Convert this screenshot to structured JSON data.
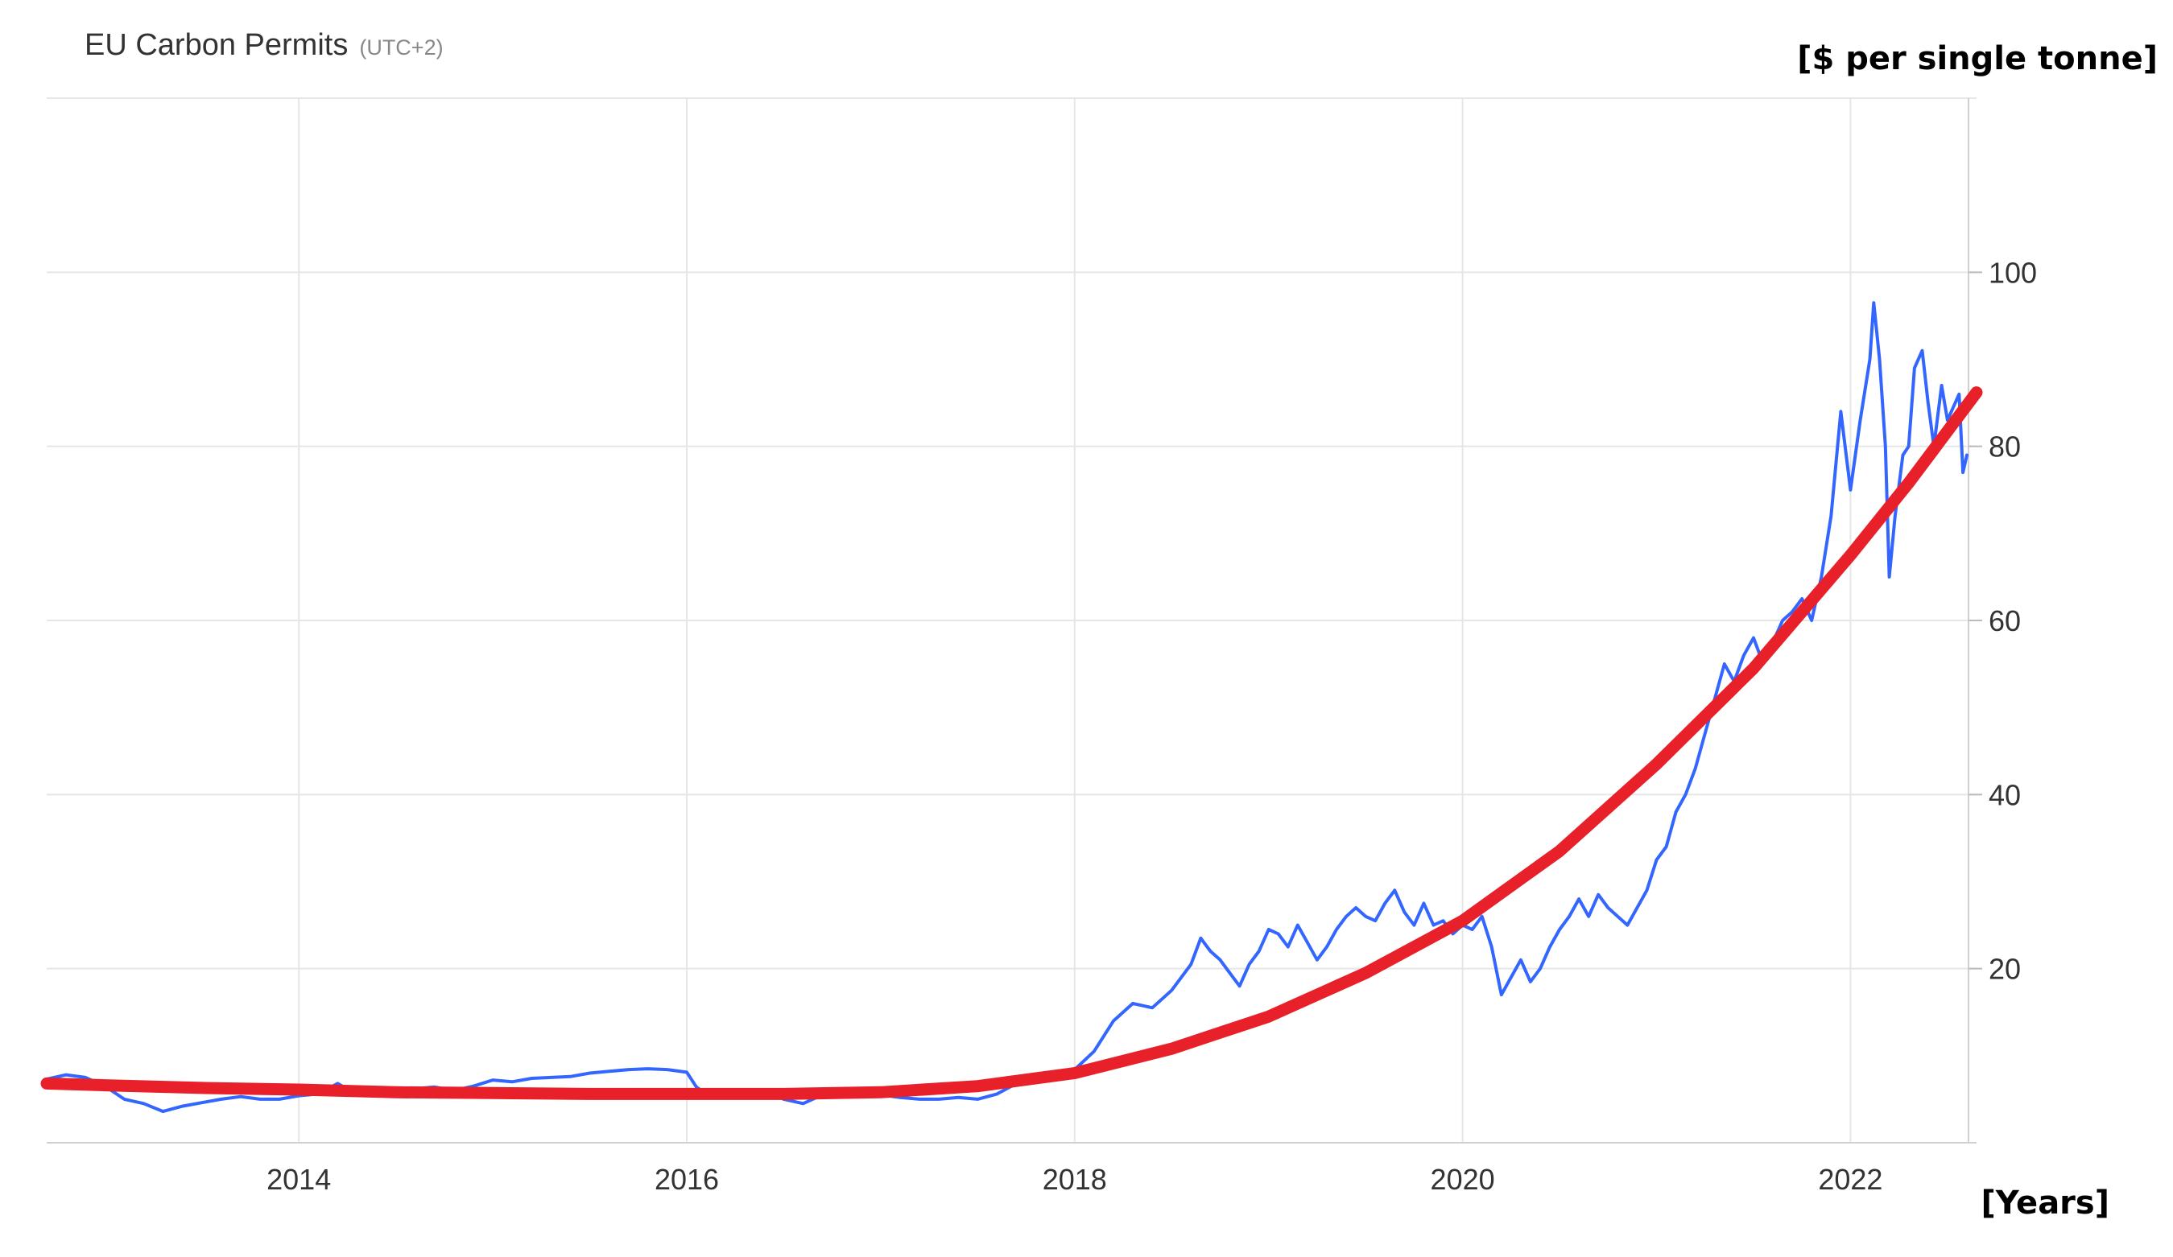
{
  "chart_data": {
    "type": "line",
    "title": "EU Carbon Permits",
    "subtitle": "(UTC+2)",
    "ylabel": "[$ per single tonne]",
    "xlabel": "[Years]",
    "xlim": [
      2012.7,
      2022.65
    ],
    "ylim": [
      0,
      120
    ],
    "x_ticks": [
      2014,
      2016,
      2018,
      2020,
      2022
    ],
    "y_ticks": [
      20,
      40,
      60,
      80,
      100
    ],
    "x_tick_labels": [
      "2014",
      "2016",
      "2018",
      "2020",
      "2022"
    ],
    "y_tick_labels": [
      "20",
      "40",
      "60",
      "80",
      "100"
    ],
    "grid": true,
    "colors": {
      "price": "#3366ff",
      "trend": "#e8202a",
      "grid": "#e6e6e6"
    },
    "series": [
      {
        "style": "thin-line",
        "points": [
          [
            2012.7,
            7.3
          ],
          [
            2012.8,
            7.8
          ],
          [
            2012.9,
            7.5
          ],
          [
            2013.0,
            6.5
          ],
          [
            2013.1,
            5.0
          ],
          [
            2013.2,
            4.5
          ],
          [
            2013.3,
            3.6
          ],
          [
            2013.4,
            4.2
          ],
          [
            2013.5,
            4.6
          ],
          [
            2013.6,
            5.0
          ],
          [
            2013.7,
            5.3
          ],
          [
            2013.8,
            5.0
          ],
          [
            2013.9,
            5.0
          ],
          [
            2014.0,
            5.4
          ],
          [
            2014.1,
            5.6
          ],
          [
            2014.2,
            6.8
          ],
          [
            2014.3,
            5.5
          ],
          [
            2014.4,
            5.4
          ],
          [
            2014.5,
            6.0
          ],
          [
            2014.6,
            6.2
          ],
          [
            2014.7,
            6.4
          ],
          [
            2014.8,
            6.0
          ],
          [
            2014.9,
            6.5
          ],
          [
            2015.0,
            7.2
          ],
          [
            2015.1,
            7.0
          ],
          [
            2015.2,
            7.4
          ],
          [
            2015.3,
            7.5
          ],
          [
            2015.4,
            7.6
          ],
          [
            2015.5,
            8.0
          ],
          [
            2015.6,
            8.2
          ],
          [
            2015.7,
            8.4
          ],
          [
            2015.8,
            8.5
          ],
          [
            2015.9,
            8.4
          ],
          [
            2016.0,
            8.1
          ],
          [
            2016.05,
            6.4
          ],
          [
            2016.1,
            5.6
          ],
          [
            2016.2,
            5.8
          ],
          [
            2016.3,
            5.5
          ],
          [
            2016.4,
            6.0
          ],
          [
            2016.5,
            5.0
          ],
          [
            2016.6,
            4.5
          ],
          [
            2016.7,
            5.5
          ],
          [
            2016.8,
            6.0
          ],
          [
            2016.9,
            6.2
          ],
          [
            2017.0,
            5.5
          ],
          [
            2017.1,
            5.2
          ],
          [
            2017.2,
            5.0
          ],
          [
            2017.3,
            5.0
          ],
          [
            2017.4,
            5.2
          ],
          [
            2017.5,
            5.0
          ],
          [
            2017.6,
            5.6
          ],
          [
            2017.7,
            6.8
          ],
          [
            2017.8,
            7.6
          ],
          [
            2017.9,
            8.0
          ],
          [
            2018.0,
            8.4
          ],
          [
            2018.1,
            10.5
          ],
          [
            2018.2,
            14.0
          ],
          [
            2018.3,
            16.0
          ],
          [
            2018.4,
            15.5
          ],
          [
            2018.5,
            17.5
          ],
          [
            2018.6,
            20.5
          ],
          [
            2018.65,
            23.5
          ],
          [
            2018.7,
            22.0
          ],
          [
            2018.75,
            21.0
          ],
          [
            2018.8,
            19.5
          ],
          [
            2018.85,
            18.0
          ],
          [
            2018.9,
            20.5
          ],
          [
            2018.95,
            22.0
          ],
          [
            2019.0,
            24.5
          ],
          [
            2019.05,
            24.0
          ],
          [
            2019.1,
            22.5
          ],
          [
            2019.15,
            25.0
          ],
          [
            2019.2,
            23.0
          ],
          [
            2019.25,
            21.0
          ],
          [
            2019.3,
            22.5
          ],
          [
            2019.35,
            24.5
          ],
          [
            2019.4,
            26.0
          ],
          [
            2019.45,
            27.0
          ],
          [
            2019.5,
            26.0
          ],
          [
            2019.55,
            25.5
          ],
          [
            2019.6,
            27.5
          ],
          [
            2019.65,
            29.0
          ],
          [
            2019.7,
            26.5
          ],
          [
            2019.75,
            25.0
          ],
          [
            2019.8,
            27.5
          ],
          [
            2019.85,
            25.0
          ],
          [
            2019.9,
            25.5
          ],
          [
            2019.95,
            24.0
          ],
          [
            2020.0,
            25.0
          ],
          [
            2020.05,
            24.5
          ],
          [
            2020.1,
            26.0
          ],
          [
            2020.15,
            22.5
          ],
          [
            2020.2,
            17.0
          ],
          [
            2020.25,
            19.0
          ],
          [
            2020.3,
            21.0
          ],
          [
            2020.35,
            18.5
          ],
          [
            2020.4,
            20.0
          ],
          [
            2020.45,
            22.5
          ],
          [
            2020.5,
            24.5
          ],
          [
            2020.55,
            26.0
          ],
          [
            2020.6,
            28.0
          ],
          [
            2020.65,
            26.0
          ],
          [
            2020.7,
            28.5
          ],
          [
            2020.75,
            27.0
          ],
          [
            2020.8,
            26.0
          ],
          [
            2020.85,
            25.0
          ],
          [
            2020.9,
            27.0
          ],
          [
            2020.95,
            29.0
          ],
          [
            2021.0,
            32.5
          ],
          [
            2021.05,
            34.0
          ],
          [
            2021.1,
            38.0
          ],
          [
            2021.15,
            40.0
          ],
          [
            2021.2,
            43.0
          ],
          [
            2021.25,
            47.0
          ],
          [
            2021.3,
            51.0
          ],
          [
            2021.35,
            55.0
          ],
          [
            2021.4,
            53.0
          ],
          [
            2021.45,
            56.0
          ],
          [
            2021.5,
            58.0
          ],
          [
            2021.55,
            55.0
          ],
          [
            2021.6,
            57.5
          ],
          [
            2021.65,
            60.0
          ],
          [
            2021.7,
            61.0
          ],
          [
            2021.75,
            62.5
          ],
          [
            2021.8,
            60.0
          ],
          [
            2021.85,
            65.0
          ],
          [
            2021.9,
            72.0
          ],
          [
            2021.95,
            84.0
          ],
          [
            2022.0,
            75.0
          ],
          [
            2022.05,
            83.0
          ],
          [
            2022.1,
            90.0
          ],
          [
            2022.12,
            96.5
          ],
          [
            2022.15,
            90.0
          ],
          [
            2022.18,
            80.0
          ],
          [
            2022.2,
            65.0
          ],
          [
            2022.23,
            72.0
          ],
          [
            2022.27,
            79.0
          ],
          [
            2022.3,
            80.0
          ],
          [
            2022.33,
            89.0
          ],
          [
            2022.37,
            91.0
          ],
          [
            2022.4,
            85.0
          ],
          [
            2022.43,
            80.0
          ],
          [
            2022.47,
            87.0
          ],
          [
            2022.5,
            83.0
          ],
          [
            2022.53,
            84.5
          ],
          [
            2022.56,
            86.0
          ],
          [
            2022.58,
            77.0
          ],
          [
            2022.6,
            79.0
          ]
        ]
      },
      {
        "style": "thick-trend",
        "points": [
          [
            2012.7,
            6.8
          ],
          [
            2013.0,
            6.6
          ],
          [
            2013.5,
            6.3
          ],
          [
            2014.0,
            6.1
          ],
          [
            2014.5,
            5.8
          ],
          [
            2015.0,
            5.7
          ],
          [
            2015.5,
            5.6
          ],
          [
            2016.0,
            5.6
          ],
          [
            2016.5,
            5.6
          ],
          [
            2017.0,
            5.8
          ],
          [
            2017.5,
            6.5
          ],
          [
            2018.0,
            8.0
          ],
          [
            2018.5,
            10.8
          ],
          [
            2019.0,
            14.5
          ],
          [
            2019.5,
            19.5
          ],
          [
            2020.0,
            25.5
          ],
          [
            2020.5,
            33.5
          ],
          [
            2021.0,
            43.5
          ],
          [
            2021.5,
            54.5
          ],
          [
            2022.0,
            67.5
          ],
          [
            2022.3,
            75.8
          ],
          [
            2022.65,
            86.2
          ]
        ]
      }
    ]
  }
}
